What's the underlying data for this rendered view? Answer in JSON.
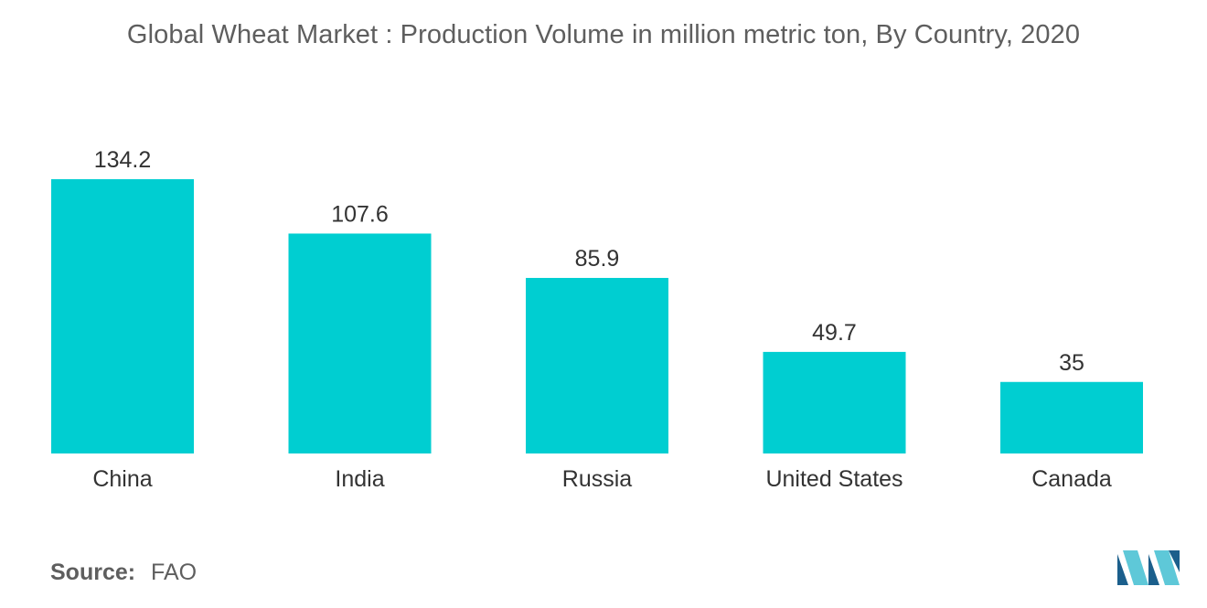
{
  "chart_data": {
    "type": "bar",
    "title": "Global Wheat Market : Production Volume in million metric ton, By Country, 2020",
    "categories": [
      "China",
      "India",
      "Russia",
      "United States",
      "Canada"
    ],
    "values": [
      134.2,
      107.6,
      85.9,
      49.7,
      35
    ],
    "value_labels": [
      "134.2",
      "107.6",
      "85.9",
      "49.7",
      "35"
    ],
    "xlabel": "",
    "ylabel": "",
    "ylim": [
      0,
      134.2
    ],
    "grid": false,
    "legend": "none",
    "bar_color": "#00CED1",
    "axis_visible": false
  },
  "footer": {
    "source_label": "Source:",
    "source_value": "FAO"
  },
  "logo": {
    "icon": "mordor-intelligence-logo-icon",
    "color_light": "#5ec8d8",
    "color_dark": "#1b5f8c"
  },
  "colors": {
    "text": "#5e5e5e",
    "label_text": "#333333"
  }
}
